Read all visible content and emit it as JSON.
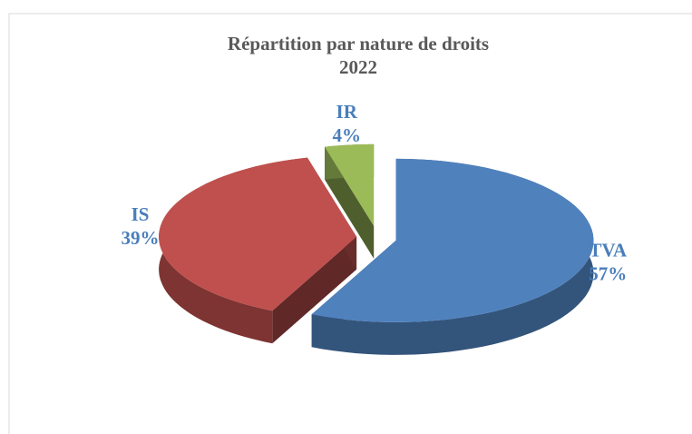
{
  "chart_data": {
    "type": "pie",
    "title": "Répartition par nature de droits",
    "subtitle": "2022",
    "categories": [
      "TVA",
      "IS",
      "IR"
    ],
    "values": [
      57,
      39,
      4
    ],
    "value_labels": [
      "57%",
      "39%",
      "4%"
    ],
    "colors": [
      "#4f81bd",
      "#c0504d",
      "#9bbb59"
    ]
  }
}
